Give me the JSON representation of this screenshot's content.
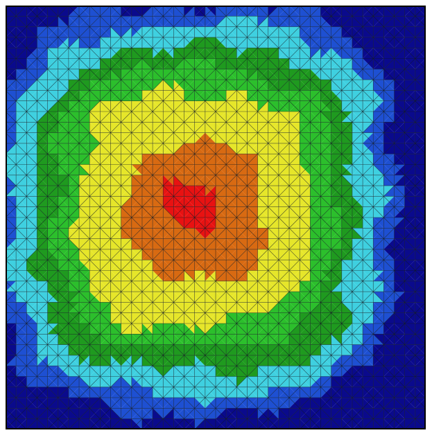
{
  "figure": {
    "kind": "finite-element contour plot on triangulated square mesh",
    "colors": {
      "background": "#ffffff",
      "mesh_line": "#101820",
      "levels": [
        "#0a0a8c",
        "#1e50d2",
        "#3fd0e0",
        "#1f9a1f",
        "#2cbf2c",
        "#e6e62a",
        "#d86a12",
        "#e81212"
      ]
    }
  },
  "chart_data": {
    "type": "heatmap",
    "title": "",
    "xlabel": "",
    "ylabel": "",
    "grid": true,
    "mesh": {
      "cells_per_side": 40,
      "style": "square cells split into triangles, star pattern every 2 cells"
    },
    "levels": [
      {
        "name": "level-1",
        "color": "#0a0a8c"
      },
      {
        "name": "level-2",
        "color": "#1e50d2"
      },
      {
        "name": "level-3",
        "color": "#3fd0e0"
      },
      {
        "name": "level-4",
        "color": "#1f9a1f"
      },
      {
        "name": "level-5",
        "color": "#2cbf2c"
      },
      {
        "name": "level-6",
        "color": "#e6e62a"
      },
      {
        "name": "level-7",
        "color": "#d86a12"
      },
      {
        "name": "level-8",
        "color": "#e81212"
      }
    ],
    "peak": {
      "x": 0.45,
      "y": 0.48
    }
  }
}
